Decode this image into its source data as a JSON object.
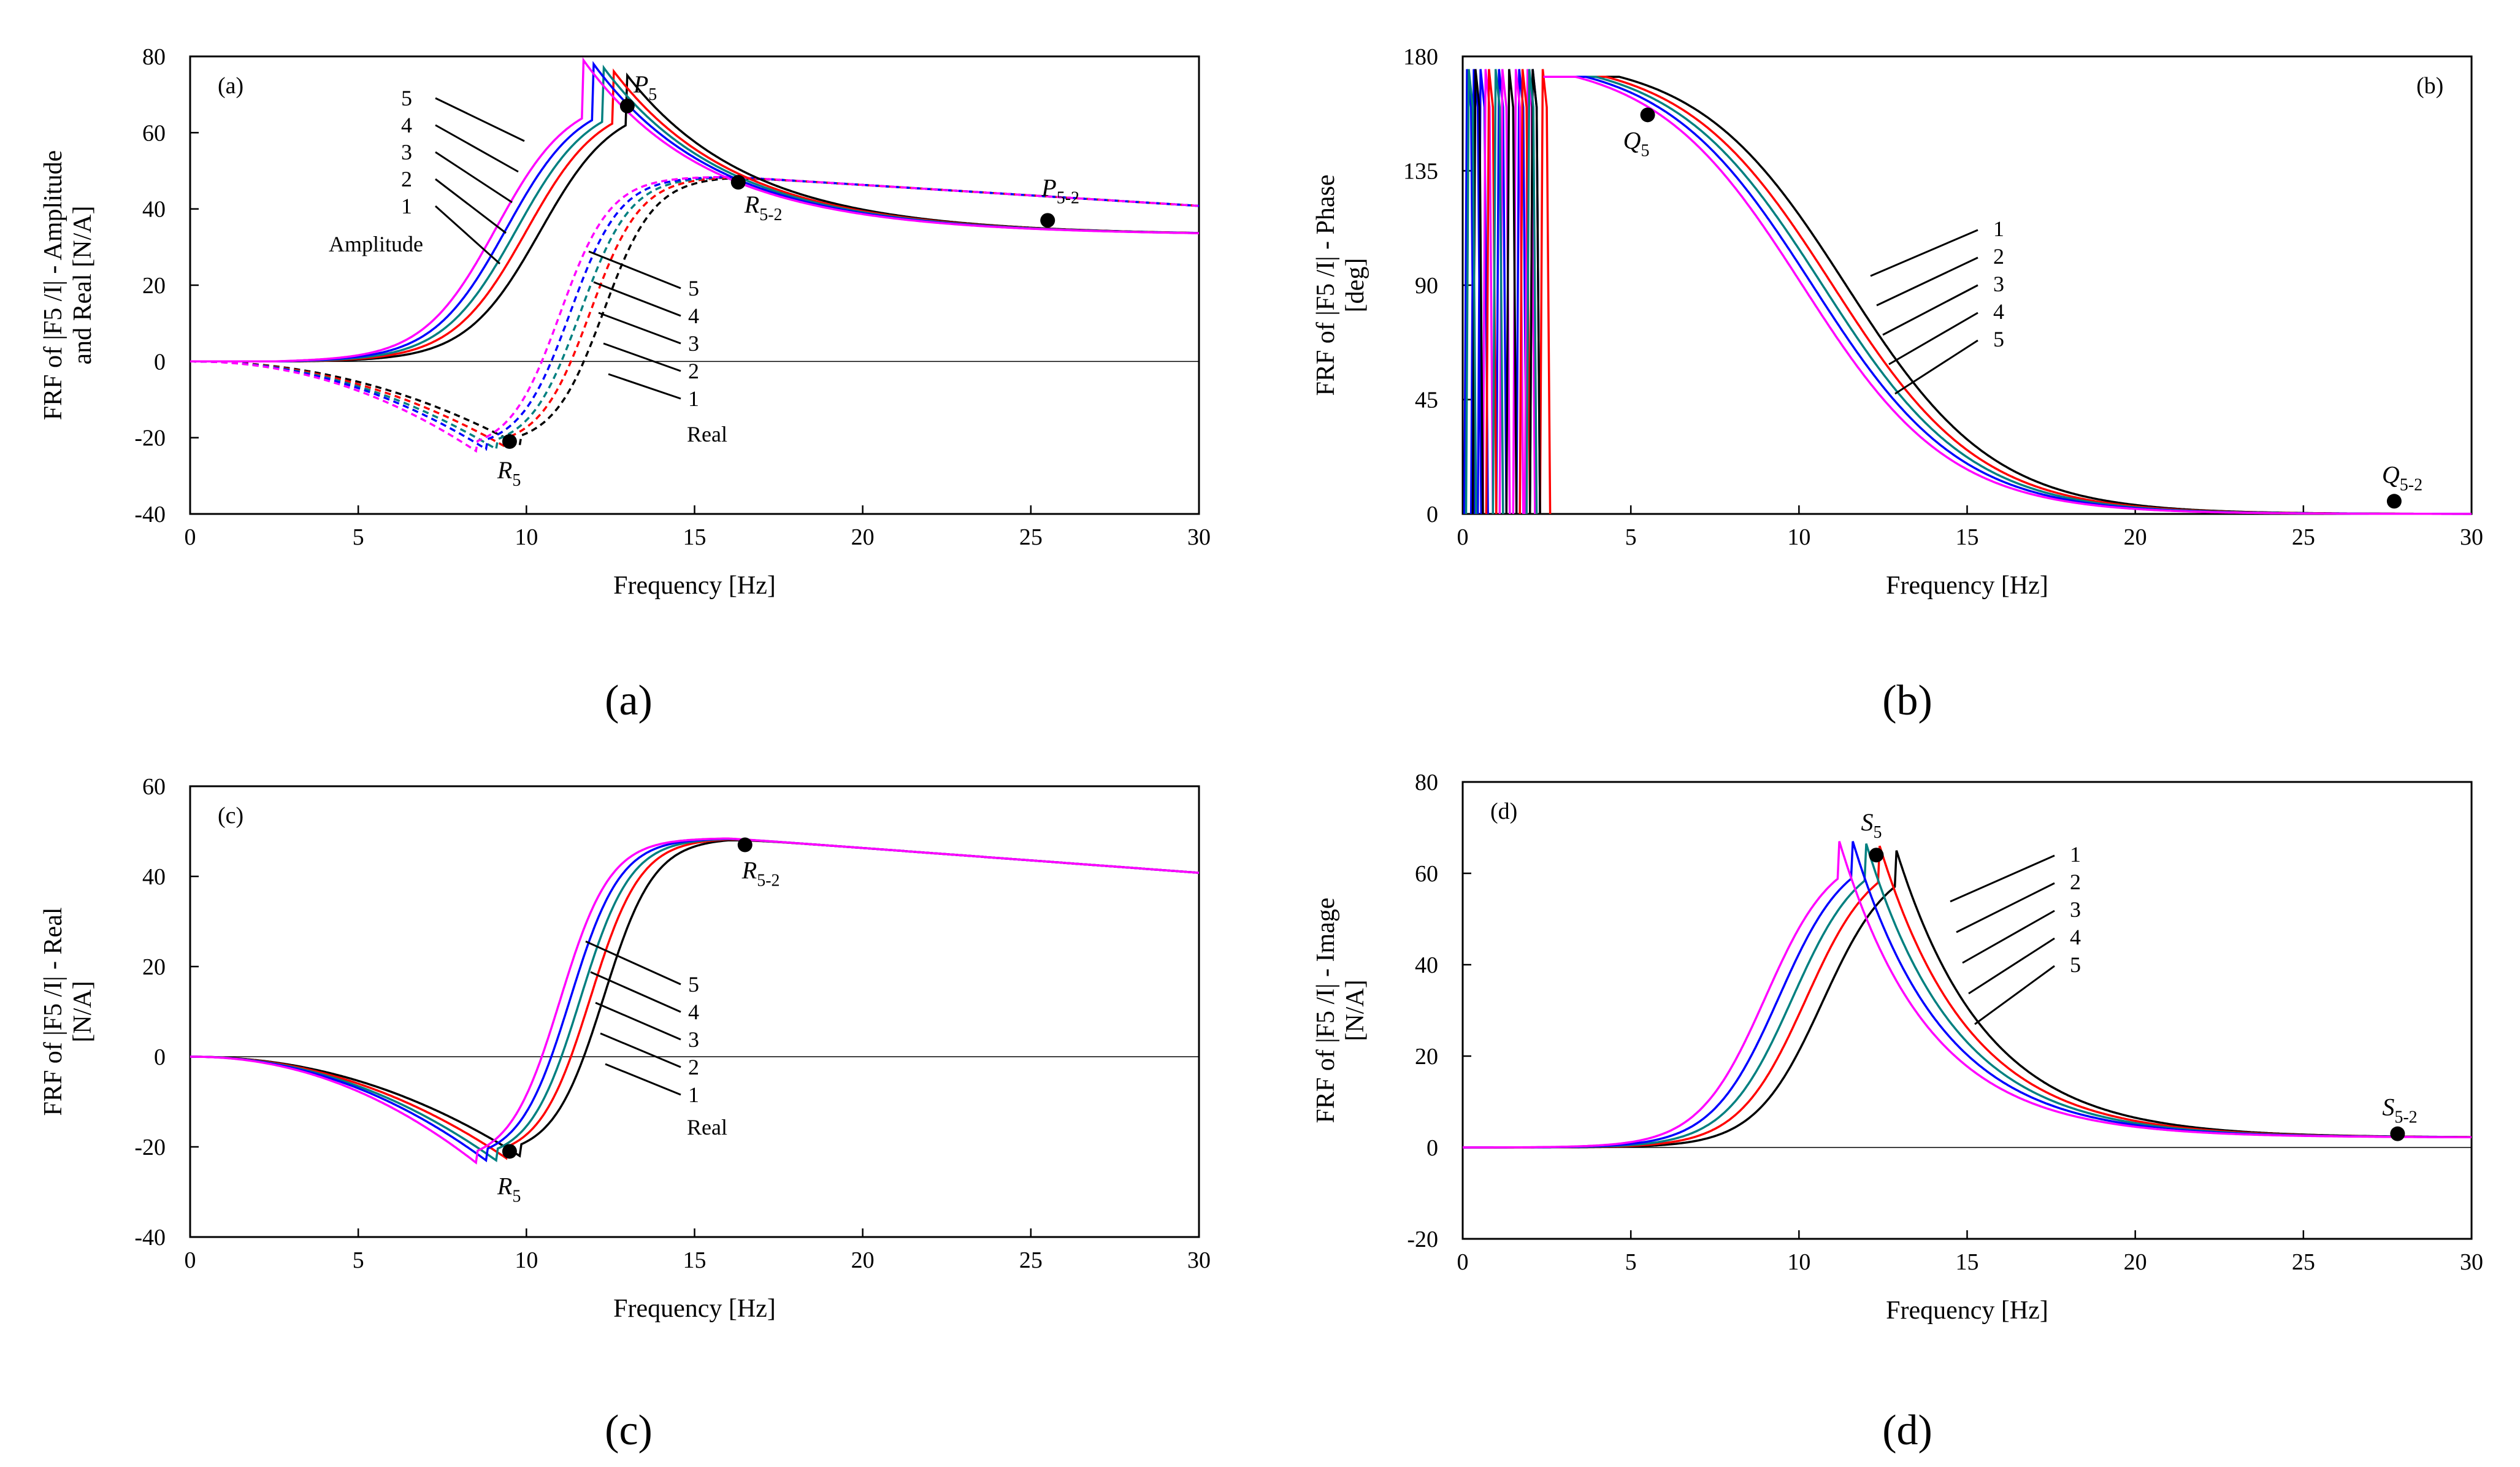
{
  "figure": {
    "captions": [
      "(a)",
      "(b)",
      "(c)",
      "(d)"
    ]
  },
  "colors": {
    "1": "#000000",
    "2": "#ff0000",
    "3": "#008080",
    "4": "#0000ff",
    "5": "#ff00ff"
  },
  "chart_data": [
    {
      "id": "a",
      "type": "line",
      "panel_tag": "(a)",
      "xlabel": "Frequency [Hz]",
      "ylabel_lines": [
        "FRF of |F5 /I| - Amplitude",
        "and Real [N/A]"
      ],
      "xlim": [
        0,
        30
      ],
      "ylim": [
        -40,
        80
      ],
      "xticks": [
        0,
        5,
        10,
        15,
        20,
        25,
        30
      ],
      "yticks": [
        -40,
        -20,
        0,
        20,
        40,
        60,
        80
      ],
      "series_groups": [
        {
          "group": "Amplitude",
          "style": "solid",
          "series": [
            {
              "name": "1",
              "peak_x": 13.0,
              "peak_y": 68
            },
            {
              "name": "2",
              "peak_x": 12.6,
              "peak_y": 68.5
            },
            {
              "name": "3",
              "peak_x": 12.3,
              "peak_y": 69
            },
            {
              "name": "4",
              "peak_x": 12.0,
              "peak_y": 69.5
            },
            {
              "name": "5",
              "peak_x": 11.7,
              "peak_y": 70
            }
          ]
        },
        {
          "group": "Real",
          "style": "dashed",
          "series": [
            {
              "name": "1",
              "min_x": 9.8,
              "min_y": -22
            },
            {
              "name": "2",
              "min_x": 9.4,
              "min_y": -22.5
            },
            {
              "name": "3",
              "min_x": 9.1,
              "min_y": -23
            },
            {
              "name": "4",
              "min_x": 8.8,
              "min_y": -23
            },
            {
              "name": "5",
              "min_x": 8.5,
              "min_y": -23.5
            }
          ]
        }
      ],
      "markers": [
        {
          "label": "P",
          "sub": "5",
          "x": 13.0,
          "y": 67
        },
        {
          "label": "R",
          "sub": "5-2",
          "x": 16.3,
          "y": 47
        },
        {
          "label": "P",
          "sub": "5-2",
          "x": 25.5,
          "y": 37
        },
        {
          "label": "R",
          "sub": "5",
          "x": 9.5,
          "y": -21
        }
      ],
      "annotations": [
        "Amplitude",
        "Real",
        "1",
        "2",
        "3",
        "4",
        "5"
      ]
    },
    {
      "id": "b",
      "type": "line",
      "panel_tag": "(b)",
      "xlabel": "Frequency [Hz]",
      "ylabel_lines": [
        "FRF of |F5 /I| - Phase",
        "[deg]"
      ],
      "xlim": [
        0,
        30
      ],
      "ylim": [
        0,
        180
      ],
      "xticks": [
        0,
        5,
        10,
        15,
        20,
        25,
        30
      ],
      "yticks": [
        0,
        45,
        90,
        135,
        180
      ],
      "series": [
        {
          "name": "1",
          "half_x": 11.4
        },
        {
          "name": "2",
          "half_x": 11.0
        },
        {
          "name": "3",
          "half_x": 10.7
        },
        {
          "name": "4",
          "half_x": 10.4
        },
        {
          "name": "5",
          "half_x": 10.1
        }
      ],
      "markers": [
        {
          "label": "Q",
          "sub": "5",
          "x": 5.5,
          "y": 157
        },
        {
          "label": "Q",
          "sub": "5-2",
          "x": 27.7,
          "y": 5
        }
      ],
      "annotations": [
        "1",
        "2",
        "3",
        "4",
        "5"
      ]
    },
    {
      "id": "c",
      "type": "line",
      "panel_tag": "(c)",
      "xlabel": "Frequency [Hz]",
      "ylabel_lines": [
        "FRF of |F5 /I| - Real",
        "[N/A]"
      ],
      "xlim": [
        0,
        30
      ],
      "ylim": [
        -40,
        60
      ],
      "xticks": [
        0,
        5,
        10,
        15,
        20,
        25,
        30
      ],
      "yticks": [
        -40,
        -20,
        0,
        20,
        40,
        60
      ],
      "series": [
        {
          "name": "1",
          "min_x": 9.8,
          "min_y": -22
        },
        {
          "name": "2",
          "min_x": 9.4,
          "min_y": -22.5
        },
        {
          "name": "3",
          "min_x": 9.1,
          "min_y": -23
        },
        {
          "name": "4",
          "min_x": 8.8,
          "min_y": -23
        },
        {
          "name": "5",
          "min_x": 8.5,
          "min_y": -23.5
        }
      ],
      "markers": [
        {
          "label": "R",
          "sub": "5-2",
          "x": 16.5,
          "y": 47
        },
        {
          "label": "R",
          "sub": "5",
          "x": 9.5,
          "y": -21
        }
      ],
      "annotations": [
        "Real",
        "1",
        "2",
        "3",
        "4",
        "5"
      ]
    },
    {
      "id": "d",
      "type": "line",
      "panel_tag": "(d)",
      "xlabel": "Frequency [Hz]",
      "ylabel_lines": [
        "FRF of |F5 /I| - Image",
        "[N/A]"
      ],
      "xlim": [
        0,
        30
      ],
      "ylim": [
        -20,
        80
      ],
      "xticks": [
        0,
        5,
        10,
        15,
        20,
        25,
        30
      ],
      "yticks": [
        -20,
        0,
        20,
        40,
        60,
        80
      ],
      "series": [
        {
          "name": "1",
          "peak_x": 12.9,
          "peak_y": 65
        },
        {
          "name": "2",
          "peak_x": 12.4,
          "peak_y": 66
        },
        {
          "name": "3",
          "peak_x": 12.0,
          "peak_y": 66.5
        },
        {
          "name": "4",
          "peak_x": 11.6,
          "peak_y": 67
        },
        {
          "name": "5",
          "peak_x": 11.2,
          "peak_y": 67
        }
      ],
      "markers": [
        {
          "label": "S",
          "sub": "5",
          "x": 12.3,
          "y": 64
        },
        {
          "label": "S",
          "sub": "5-2",
          "x": 27.8,
          "y": 3
        }
      ],
      "annotations": [
        "1",
        "2",
        "3",
        "4",
        "5"
      ]
    }
  ]
}
